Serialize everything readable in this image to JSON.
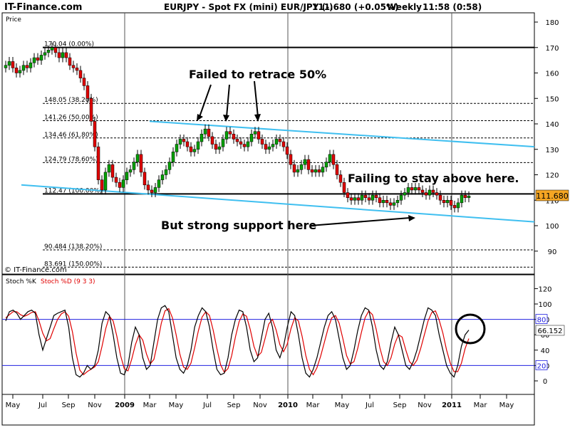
{
  "header": {
    "site": "IT-Finance.com",
    "instrument": "EURJPY - Spot FX (mini) EUR/JPY (-)",
    "last": "111.680 (+0.05%)",
    "interval": "Weekly",
    "time": "11:58 (0:58)"
  },
  "watermark": "© IT-Finance.com",
  "price_panel_label": "Price",
  "stoch_panel_label_k": "Stoch %K",
  "stoch_panel_label_d": "Stoch %D (9 3 3)",
  "last_price_tag": "111.680",
  "stoch_value_tag": "66.152",
  "colors": {
    "candle_up": "#00a000",
    "candle_down": "#e00000",
    "trendline": "#3fbff0",
    "fib_line": "#000000",
    "last_tag": "#f5a623",
    "stoch_k": "#000000",
    "stoch_d": "#e00000",
    "stoch_band": "#2020e0"
  },
  "annotations": {
    "retrace": "Failed to retrace 50%",
    "failing": "Failing to stay above here.",
    "support": "But strong support here"
  },
  "chart_data": [
    {
      "type": "candlestick",
      "title": "EURJPY - Spot FX (mini) EUR/JPY (-)",
      "ylabel": "Price",
      "ylim": [
        80,
        185
      ],
      "y_ticks": [
        90,
        100,
        110,
        120,
        130,
        140,
        150,
        160,
        170,
        180
      ],
      "x_tick_labels": [
        "May",
        "Jul",
        "Sep",
        "Nov",
        "2009",
        "Mar",
        "May",
        "Jul",
        "Sep",
        "Nov",
        "2010",
        "Mar",
        "May",
        "Jul",
        "Sep",
        "Nov",
        "2011",
        "Mar",
        "May"
      ],
      "fib_levels": [
        {
          "label": "170.04 (0.00%)",
          "value": 170.04
        },
        {
          "label": "148.05 (38.20%)",
          "value": 148.05
        },
        {
          "label": "141.26 (50.00%)",
          "value": 141.26
        },
        {
          "label": "134.46 (61.80%)",
          "value": 134.46
        },
        {
          "label": "124.79 (78.60%)",
          "value": 124.79
        },
        {
          "label": "112.47 (100.00%)",
          "value": 112.47
        },
        {
          "label": "90.484 (138.20%)",
          "value": 90.484
        },
        {
          "label": "83.691 (150.00%)",
          "value": 83.691
        }
      ],
      "series": [
        {
          "name": "EUR/JPY",
          "close": [
            163,
            164.5,
            162,
            160,
            161,
            163,
            162,
            164,
            166,
            165,
            167,
            168,
            169,
            170,
            168,
            166,
            168,
            166,
            163,
            162,
            161,
            158,
            155,
            150,
            141,
            131,
            118,
            114,
            121,
            124,
            119,
            117,
            115,
            118,
            121,
            122,
            125,
            128,
            121,
            116,
            114,
            113,
            115,
            118,
            120,
            122,
            125,
            129,
            132,
            134,
            133,
            131,
            129,
            130,
            133,
            136,
            138,
            135,
            132,
            130,
            131,
            134,
            137,
            136,
            134,
            133,
            132,
            131,
            133,
            136,
            137,
            134,
            132,
            130,
            131,
            132,
            134,
            133,
            131,
            128,
            124,
            121,
            122,
            124,
            126,
            122,
            121,
            122,
            121,
            123,
            125,
            128,
            124,
            120,
            117,
            113,
            111,
            110,
            111,
            110,
            112,
            111,
            110,
            112,
            111,
            109,
            110,
            109,
            108,
            109,
            110,
            112,
            113,
            115,
            114,
            115,
            114,
            113,
            112,
            114,
            113,
            112,
            110,
            109,
            110,
            108,
            107,
            109,
            112,
            111,
            111.68
          ]
        }
      ],
      "trendlines": [
        {
          "name": "upper",
          "from": {
            "x": "Nov 2008",
            "y": 141
          },
          "to": {
            "x": "Apr 2011",
            "y": 131
          }
        },
        {
          "name": "lower",
          "from": {
            "x": "Apr 2008",
            "y": 116
          },
          "to": {
            "x": "Apr 2011",
            "y": 101.5
          }
        }
      ],
      "last_value": 111.68
    },
    {
      "type": "line",
      "title": "Stoch %K / Stoch %D (9 3 3)",
      "ylim": [
        -10,
        135
      ],
      "y_ticks": [
        0,
        20,
        40,
        60,
        80,
        100,
        120
      ],
      "bands": [
        20,
        80
      ],
      "series": [
        {
          "name": "Stoch %K",
          "values": [
            78,
            90,
            92,
            88,
            80,
            85,
            90,
            92,
            88,
            60,
            40,
            55,
            70,
            85,
            88,
            90,
            92,
            70,
            30,
            8,
            5,
            10,
            20,
            15,
            20,
            40,
            75,
            90,
            85,
            60,
            30,
            10,
            8,
            20,
            50,
            70,
            60,
            30,
            15,
            20,
            50,
            80,
            95,
            98,
            90,
            60,
            30,
            15,
            10,
            20,
            40,
            70,
            85,
            95,
            90,
            70,
            40,
            15,
            8,
            10,
            30,
            60,
            80,
            92,
            90,
            70,
            40,
            25,
            30,
            55,
            80,
            88,
            70,
            40,
            30,
            45,
            70,
            90,
            85,
            60,
            30,
            10,
            5,
            15,
            30,
            50,
            70,
            85,
            90,
            80,
            55,
            30,
            15,
            20,
            40,
            65,
            85,
            95,
            92,
            70,
            40,
            20,
            15,
            25,
            50,
            70,
            60,
            40,
            20,
            15,
            25,
            40,
            60,
            80,
            95,
            92,
            85,
            60,
            40,
            20,
            10,
            5,
            20,
            45,
            60,
            66.152
          ]
        },
        {
          "name": "Stoch %D",
          "values": [
            82,
            86,
            90,
            90,
            86,
            84,
            86,
            89,
            90,
            78,
            62,
            52,
            55,
            68,
            80,
            87,
            90,
            84,
            64,
            36,
            14,
            8,
            12,
            15,
            18,
            25,
            45,
            68,
            84,
            78,
            58,
            33,
            16,
            13,
            28,
            47,
            60,
            53,
            35,
            22,
            28,
            50,
            75,
            91,
            94,
            82,
            60,
            35,
            18,
            15,
            23,
            43,
            65,
            83,
            90,
            85,
            66,
            42,
            21,
            11,
            16,
            33,
            57,
            77,
            87,
            84,
            67,
            45,
            32,
            37,
            55,
            74,
            80,
            66,
            47,
            38,
            48,
            68,
            82,
            78,
            58,
            33,
            15,
            8,
            17,
            32,
            50,
            68,
            82,
            85,
            75,
            55,
            33,
            22,
            25,
            42,
            63,
            82,
            91,
            86,
            67,
            43,
            25,
            20,
            30,
            48,
            60,
            57,
            40,
            25,
            20,
            27,
            42,
            60,
            78,
            89,
            91,
            79,
            62,
            40,
            23,
            12,
            12,
            23,
            42,
            55
          ]
        }
      ],
      "last_value": 66.152
    }
  ]
}
